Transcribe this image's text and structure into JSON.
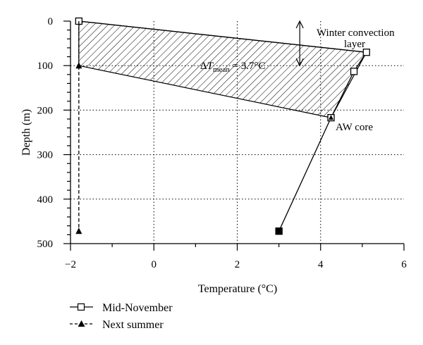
{
  "chart_data": {
    "type": "line",
    "xlabel": "Temperature (°C)",
    "ylabel": "Depth (m)",
    "xlim": [
      -2,
      6
    ],
    "ylim": [
      500,
      0
    ],
    "x_ticks": [
      -2,
      0,
      2,
      4,
      6
    ],
    "y_ticks": [
      0,
      100,
      200,
      300,
      400,
      500
    ],
    "x_tick_labels": [
      "−2",
      "0",
      "2",
      "4",
      "6"
    ],
    "y_tick_labels": [
      "0",
      "100",
      "200",
      "300",
      "400",
      "500"
    ],
    "x_minor_step": 1,
    "y_minor_step": 20,
    "grid": "dotted, x at -2,0,2,4 and y at 100,200,300,400",
    "series": [
      {
        "name": "Mid-November",
        "line": "solid",
        "marker": "open-square",
        "points": [
          {
            "x": -1.8,
            "y": 0
          },
          {
            "x": 5.1,
            "y": 70
          },
          {
            "x": 4.8,
            "y": 113
          },
          {
            "x": 4.25,
            "y": 217
          },
          {
            "x": 3.0,
            "y": 472
          }
        ]
      },
      {
        "name": "Next summer",
        "line": "dashed",
        "marker": "filled-triangle",
        "points": [
          {
            "x": -1.8,
            "y": 0
          },
          {
            "x": -1.8,
            "y": 100
          },
          {
            "x": -1.8,
            "y": 472
          }
        ]
      }
    ],
    "shaded_region": {
      "pattern": "diagonal hatch",
      "vertices": [
        {
          "x": -1.8,
          "y": 0
        },
        {
          "x": 5.1,
          "y": 70
        },
        {
          "x": 4.25,
          "y": 217
        },
        {
          "x": -1.8,
          "y": 100
        }
      ]
    },
    "arrow": {
      "x": 3.5,
      "y_from": 0,
      "y_to": 100,
      "double_headed": true
    },
    "annotations": {
      "winter_line1": "Winter convection",
      "winter_line2": "layer",
      "delta_symbol": "Δ",
      "delta_T": "T",
      "delta_sub": "mean",
      "delta_value": " = 3.7°C",
      "aw_core": "AW core"
    },
    "legend": {
      "position": "bottom-left",
      "entries": [
        "Mid-November",
        "Next summer"
      ]
    }
  }
}
